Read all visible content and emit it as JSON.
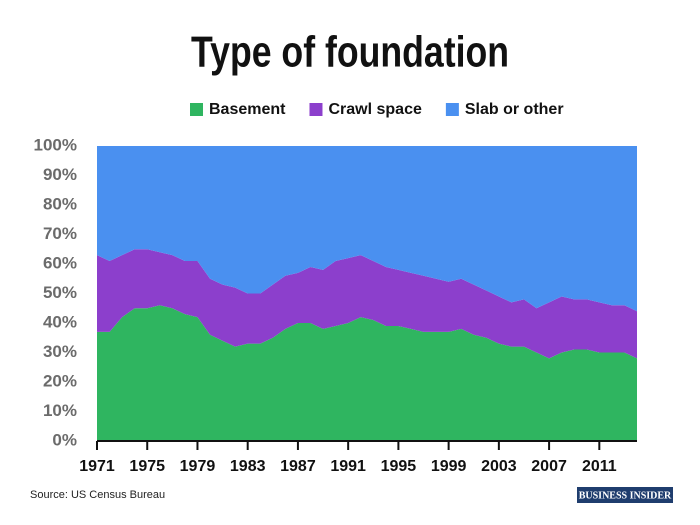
{
  "chart_data": {
    "type": "stacked_area",
    "title": "Type of foundation",
    "x": [
      1971,
      1972,
      1973,
      1974,
      1975,
      1976,
      1977,
      1978,
      1979,
      1980,
      1981,
      1982,
      1983,
      1984,
      1985,
      1986,
      1987,
      1988,
      1989,
      1990,
      1991,
      1992,
      1993,
      1994,
      1995,
      1996,
      1997,
      1998,
      1999,
      2000,
      2001,
      2002,
      2003,
      2004,
      2005,
      2006,
      2007,
      2008,
      2009,
      2010,
      2011,
      2012,
      2013,
      2014
    ],
    "series": [
      {
        "name": "Basement",
        "color": "#2fb560",
        "values": [
          37,
          37,
          42,
          45,
          45,
          46,
          45,
          43,
          42,
          36,
          34,
          32,
          33,
          33,
          35,
          38,
          40,
          40,
          38,
          39,
          40,
          42,
          41,
          39,
          39,
          38,
          37,
          37,
          37,
          38,
          36,
          35,
          33,
          32,
          32,
          30,
          28,
          30,
          31,
          31,
          30,
          30,
          30,
          28
        ]
      },
      {
        "name": "Crawl space",
        "color": "#8c3fcc",
        "values": [
          26,
          24,
          21,
          20,
          20,
          18,
          18,
          18,
          19,
          19,
          19,
          20,
          17,
          17,
          18,
          18,
          17,
          19,
          20,
          22,
          22,
          21,
          20,
          20,
          19,
          19,
          19,
          18,
          17,
          17,
          17,
          16,
          16,
          15,
          16,
          15,
          19,
          19,
          17,
          17,
          17,
          16,
          16,
          16
        ]
      },
      {
        "name": "Slab or other",
        "color": "#4a90f0",
        "values": [
          37,
          39,
          37,
          35,
          35,
          36,
          37,
          39,
          39,
          45,
          47,
          48,
          50,
          50,
          47,
          44,
          43,
          41,
          42,
          39,
          38,
          37,
          39,
          41,
          42,
          43,
          44,
          45,
          46,
          45,
          47,
          49,
          51,
          53,
          52,
          55,
          53,
          51,
          52,
          52,
          53,
          54,
          54,
          56
        ]
      }
    ],
    "xlim": [
      1971,
      2014
    ],
    "xticks": [
      1971,
      1975,
      1979,
      1983,
      1987,
      1991,
      1995,
      1999,
      2003,
      2007,
      2011
    ],
    "ylim": [
      0,
      100
    ],
    "yticks": [
      {
        "value": 0,
        "label": "0%"
      },
      {
        "value": 10,
        "label": "10%"
      },
      {
        "value": 20,
        "label": "20%"
      },
      {
        "value": 30,
        "label": "30%"
      },
      {
        "value": 40,
        "label": "40%"
      },
      {
        "value": 50,
        "label": "50%"
      },
      {
        "value": 60,
        "label": "60%"
      },
      {
        "value": 70,
        "label": "70%"
      },
      {
        "value": 80,
        "label": "80%"
      },
      {
        "value": 90,
        "label": "90%"
      },
      {
        "value": 100,
        "label": "100%"
      }
    ],
    "source": "Source: US Census Bureau",
    "publisher": "BUSINESS INSIDER"
  }
}
